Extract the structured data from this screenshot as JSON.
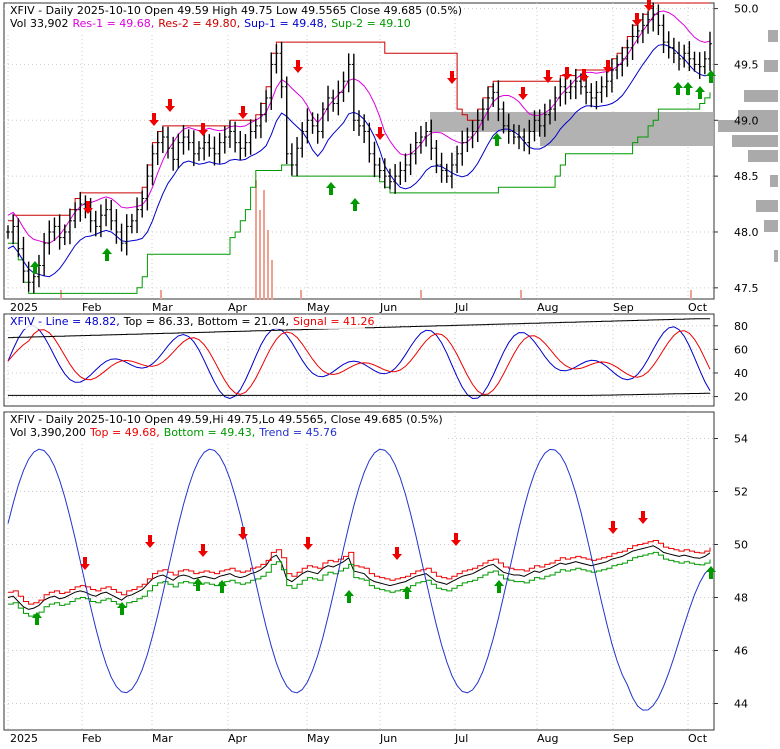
{
  "colors": {
    "background": "#ffffff",
    "frame": "#333333",
    "grid": "#cccccc",
    "price_bar": "#000000",
    "res1": "#dd00dd",
    "res2": "#cc0000",
    "sup1": "#0000cc",
    "sup2": "#009900",
    "volume": "#f0a090",
    "volume_profile": "#aaaaaa",
    "line": "#0000cc",
    "signal": "#ee0000",
    "band": "#000000",
    "top": "#ee0000",
    "bottom": "#009900",
    "trend": "#2233cc",
    "sell_arrow": "#ee0000",
    "buy_arrow": "#009900"
  },
  "panel1": {
    "title": "XFIV - Daily 2025-10-10 Open 49.59  High 49.75  Low 49.5565  Close 49.685 (0.5%)",
    "vol_text": "Vol 33,902",
    "res1_text": "Res-1 = 49.68,",
    "res2_text": "Res-2 = 49.80,",
    "sup1_text": "Sup-1 = 49.48,",
    "sup2_text": "Sup-2 = 49.10"
  },
  "panel2": {
    "title": "XFIV - Line = 48.82,",
    "top_text": "Top = 86.33,",
    "bottom_text": "Bottom = 21.04,",
    "signal_text": "Signal = 41.26"
  },
  "panel3": {
    "title": "XFIV - Daily 2025-10-10 Open 49.59,Hi 49.75,Lo 49.5565, Close 49.685 (0.5%)",
    "vol_text": "Vol 3,390,200",
    "top_text": "Top = 49.68,",
    "bottom_text": "Bottom = 49.43,",
    "trend_text": "Trend = 45.76"
  },
  "x_axis": {
    "labels": [
      "2025",
      "Feb",
      "Mar",
      "Apr",
      "May",
      "Jun",
      "Jul",
      "Aug",
      "Sep",
      "Oct"
    ]
  },
  "chart_data": [
    {
      "type": "ohlc",
      "name": "price",
      "ylim": [
        47.4,
        50.05
      ],
      "yticks": [
        47.5,
        48.0,
        48.5,
        49.0,
        49.5,
        50.0
      ],
      "ytick_labels": [
        "47.5",
        "48.0",
        "48.5",
        "49.0",
        "49.5",
        "50.0"
      ],
      "close": [
        48.0,
        48.05,
        47.85,
        47.65,
        47.55,
        47.6,
        47.7,
        47.9,
        48.0,
        48.05,
        47.95,
        48.0,
        48.1,
        48.2,
        48.25,
        48.2,
        48.1,
        48.05,
        48.15,
        48.2,
        48.1,
        48.0,
        47.9,
        48.05,
        48.1,
        48.2,
        48.3,
        48.5,
        48.7,
        48.8,
        48.85,
        48.75,
        48.65,
        48.8,
        48.85,
        48.8,
        48.7,
        48.75,
        48.8,
        48.75,
        48.7,
        48.8,
        48.85,
        48.9,
        48.8,
        48.75,
        48.8,
        48.9,
        48.95,
        49.05,
        49.2,
        49.5,
        49.6,
        49.3,
        48.7,
        48.6,
        48.75,
        48.9,
        49.0,
        48.95,
        48.9,
        49.1,
        49.2,
        49.15,
        49.25,
        49.35,
        49.5,
        49.0,
        48.95,
        48.9,
        48.7,
        48.6,
        48.55,
        48.5,
        48.45,
        48.5,
        48.55,
        48.6,
        48.7,
        48.8,
        48.85,
        48.9,
        48.75,
        48.6,
        48.55,
        48.5,
        48.6,
        48.7,
        48.8,
        48.85,
        48.9,
        49.0,
        49.1,
        49.2,
        49.25,
        49.1,
        48.95,
        48.9,
        48.85,
        48.85,
        48.8,
        48.9,
        49.0,
        48.95,
        49.05,
        49.1,
        49.2,
        49.3,
        49.25,
        49.3,
        49.35,
        49.3,
        49.25,
        49.2,
        49.25,
        49.3,
        49.35,
        49.45,
        49.5,
        49.55,
        49.65,
        49.75,
        49.8,
        49.85,
        49.9,
        49.95,
        49.85,
        49.7,
        49.65,
        49.6,
        49.55,
        49.6,
        49.55,
        49.5,
        49.48,
        49.55,
        49.685
      ],
      "volume_spikes": [
        {
          "x": "Apr",
          "value": "high"
        }
      ],
      "annotations": {
        "res1": 49.68,
        "res2": 49.8,
        "sup1": 49.48,
        "sup2": 49.1
      }
    },
    {
      "type": "line",
      "name": "oscillator",
      "ylim": [
        12,
        90
      ],
      "yticks": [
        20,
        40,
        60,
        80
      ],
      "ytick_labels": [
        "20",
        "40",
        "60",
        "80"
      ],
      "series": [
        {
          "name": "Line",
          "values": [
            48.82
          ]
        },
        {
          "name": "Signal",
          "values": [
            41.26
          ]
        },
        {
          "name": "Top",
          "values": [
            86.33
          ]
        },
        {
          "name": "Bottom",
          "values": [
            21.04
          ]
        }
      ]
    },
    {
      "type": "line",
      "name": "trend",
      "ylim": [
        43.0,
        55.0
      ],
      "yticks": [
        44,
        46,
        48,
        50,
        52,
        54
      ],
      "ytick_labels": [
        "44",
        "46",
        "48",
        "50",
        "52",
        "54"
      ],
      "series": [
        {
          "name": "Top",
          "values": [
            49.68
          ]
        },
        {
          "name": "Bottom",
          "values": [
            49.43
          ]
        },
        {
          "name": "Trend",
          "values": [
            45.76
          ]
        }
      ]
    }
  ]
}
